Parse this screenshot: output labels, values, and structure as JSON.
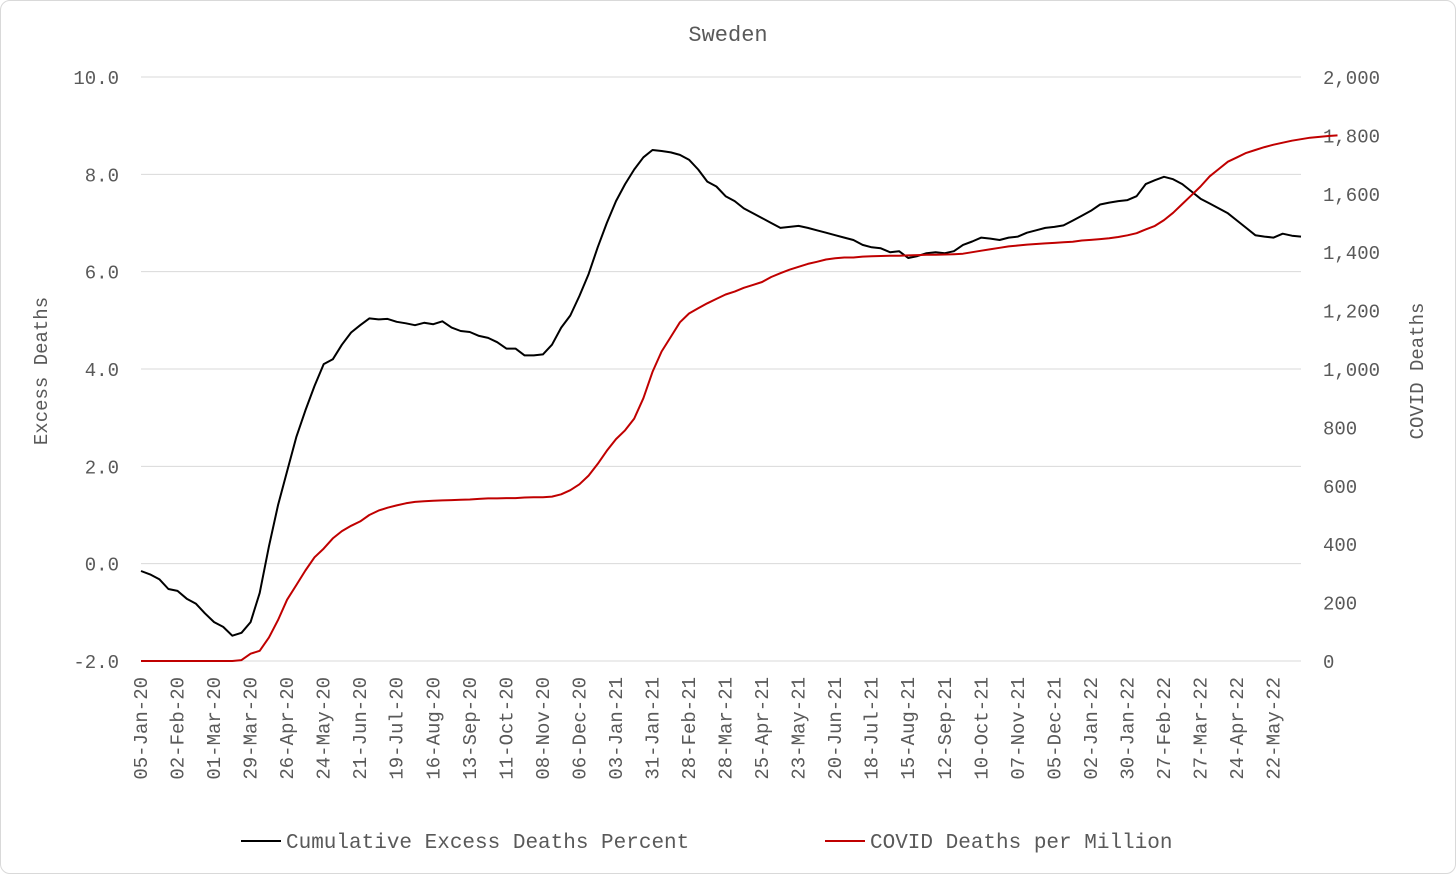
{
  "chart_data": {
    "type": "line",
    "title": "Sweden",
    "ylabel": "Excess Deaths",
    "y2label": "COVID Deaths",
    "ylim": [
      -2.0,
      10.0
    ],
    "y2lim": [
      0,
      2000
    ],
    "yticks": [
      "-2.0",
      "0.0",
      "2.0",
      "4.0",
      "6.0",
      "8.0",
      "10.0"
    ],
    "y2ticks": [
      "0",
      "200",
      "400",
      "600",
      "800",
      "1,000",
      "1,200",
      "1,400",
      "1,600",
      "1,800",
      "2,000"
    ],
    "xticks": [
      "05-Jan-20",
      "02-Feb-20",
      "01-Mar-20",
      "29-Mar-20",
      "26-Apr-20",
      "24-May-20",
      "21-Jun-20",
      "19-Jul-20",
      "16-Aug-20",
      "13-Sep-20",
      "11-Oct-20",
      "08-Nov-20",
      "06-Dec-20",
      "03-Jan-21",
      "31-Jan-21",
      "28-Feb-21",
      "28-Mar-21",
      "25-Apr-21",
      "23-May-21",
      "20-Jun-21",
      "18-Jul-21",
      "15-Aug-21",
      "12-Sep-21",
      "10-Oct-21",
      "07-Nov-21",
      "05-Dec-21",
      "02-Jan-22",
      "30-Jan-22",
      "27-Feb-22",
      "27-Mar-22",
      "24-Apr-22",
      "22-May-22"
    ],
    "grid": true,
    "legend_position": "bottom",
    "series": [
      {
        "name": "Cumulative Excess Deaths Percent",
        "axis": "left",
        "color": "#000000",
        "values": [
          -0.15,
          -0.22,
          -0.32,
          -0.52,
          -0.56,
          -0.72,
          -0.82,
          -1.02,
          -1.2,
          -1.3,
          -1.48,
          -1.42,
          -1.2,
          -0.6,
          0.35,
          1.2,
          1.9,
          2.6,
          3.15,
          3.65,
          4.1,
          4.2,
          4.5,
          4.75,
          4.9,
          5.04,
          5.02,
          5.03,
          4.97,
          4.94,
          4.9,
          4.95,
          4.92,
          4.98,
          4.85,
          4.78,
          4.76,
          4.68,
          4.64,
          4.55,
          4.42,
          4.42,
          4.28,
          4.28,
          4.3,
          4.5,
          4.85,
          5.1,
          5.5,
          5.95,
          6.5,
          7.0,
          7.45,
          7.8,
          8.1,
          8.35,
          8.5,
          8.48,
          8.45,
          8.4,
          8.3,
          8.1,
          7.85,
          7.75,
          7.55,
          7.45,
          7.3,
          7.2,
          7.1,
          7.0,
          6.9,
          6.92,
          6.94,
          6.9,
          6.85,
          6.8,
          6.75,
          6.7,
          6.65,
          6.55,
          6.5,
          6.48,
          6.4,
          6.42,
          6.28,
          6.32,
          6.38,
          6.4,
          6.38,
          6.42,
          6.55,
          6.62,
          6.7,
          6.68,
          6.65,
          6.7,
          6.72,
          6.8,
          6.85,
          6.9,
          6.92,
          6.95,
          7.05,
          7.15,
          7.25,
          7.38,
          7.42,
          7.45,
          7.47,
          7.55,
          7.8,
          7.88,
          7.95,
          7.9,
          7.8,
          7.65,
          7.5,
          7.4,
          7.3,
          7.2,
          7.05,
          6.9,
          6.75,
          6.72,
          6.7,
          6.78,
          6.74,
          6.72
        ]
      },
      {
        "name": "COVID Deaths per Million",
        "axis": "right",
        "color": "#c00000",
        "values": [
          0,
          0,
          0,
          0,
          0,
          0,
          0,
          0,
          0,
          0,
          0,
          3,
          25,
          35,
          80,
          140,
          210,
          260,
          310,
          355,
          385,
          420,
          445,
          463,
          478,
          500,
          515,
          525,
          533,
          540,
          545,
          547,
          549,
          550,
          551,
          552,
          553,
          555,
          557,
          557,
          558,
          558,
          560,
          561,
          561,
          563,
          571,
          585,
          605,
          635,
          675,
          720,
          760,
          790,
          830,
          900,
          990,
          1060,
          1110,
          1160,
          1190,
          1208,
          1225,
          1240,
          1255,
          1265,
          1278,
          1288,
          1298,
          1315,
          1328,
          1340,
          1350,
          1360,
          1367,
          1375,
          1379,
          1382,
          1382,
          1385,
          1386,
          1387,
          1388,
          1388,
          1389,
          1390,
          1391,
          1391,
          1392,
          1393,
          1395,
          1400,
          1405,
          1410,
          1415,
          1420,
          1423,
          1426,
          1428,
          1430,
          1432,
          1434,
          1436,
          1440,
          1442,
          1445,
          1448,
          1452,
          1458,
          1465,
          1478,
          1490,
          1510,
          1535,
          1565,
          1595,
          1625,
          1660,
          1685,
          1710,
          1725,
          1740,
          1750,
          1760,
          1768,
          1775,
          1782,
          1787,
          1792,
          1795,
          1798,
          1800
        ]
      }
    ]
  }
}
